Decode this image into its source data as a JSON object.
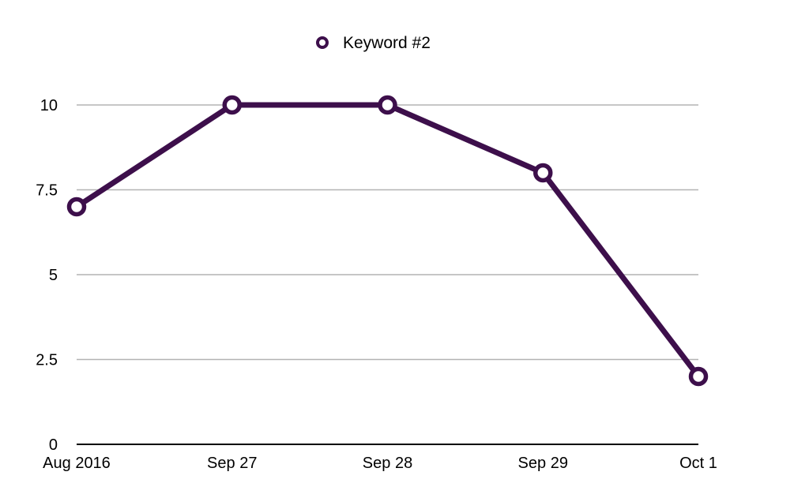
{
  "chart_data": {
    "type": "line",
    "title": "",
    "xlabel": "",
    "ylabel": "",
    "categories": [
      "Aug 2016",
      "Sep 27",
      "Sep 28",
      "Sep 29",
      "Oct 1"
    ],
    "series": [
      {
        "name": "Keyword #2",
        "values": [
          7,
          10,
          10,
          8,
          2
        ]
      }
    ],
    "ylim": [
      0,
      10
    ],
    "yticks": [
      "0",
      "2.5",
      "5",
      "7.5",
      "10"
    ],
    "ytick_values": [
      0,
      2.5,
      5,
      7.5,
      10
    ],
    "grid": true,
    "legend_position": "top-center",
    "colors": {
      "series": "#3d0f4b",
      "grid": "#b3b3b3",
      "axis": "#000000",
      "marker_fill": "#ffffff"
    }
  }
}
